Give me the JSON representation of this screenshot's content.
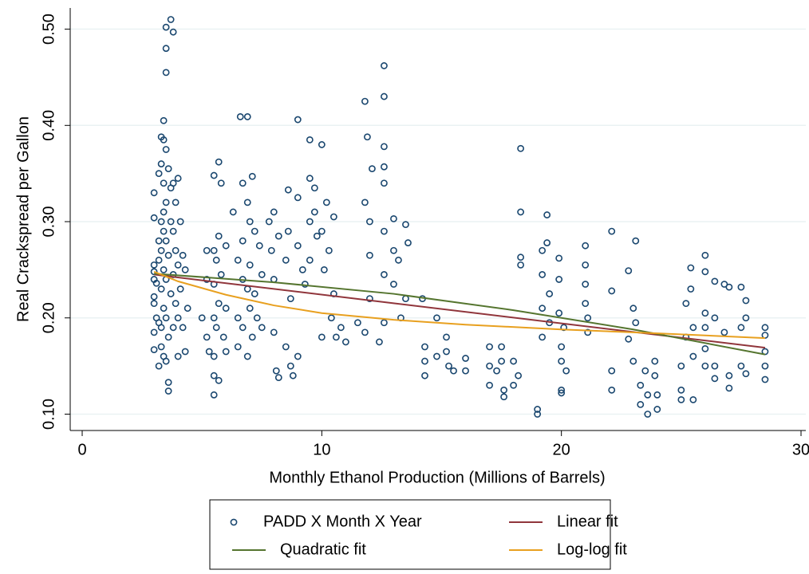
{
  "chart_data": {
    "type": "scatter",
    "y_label": "Real Crackspread per Gallon",
    "x_label": "Monthly Ethanol Production (Millions of Barrels)",
    "xlim": [
      -0.5,
      30.2
    ],
    "ylim": [
      0.083,
      0.522
    ],
    "xticks": [
      0,
      10,
      20,
      30
    ],
    "yticks": [
      {
        "value": 0.1,
        "label": "0.10"
      },
      {
        "value": 0.2,
        "label": "0.20"
      },
      {
        "value": 0.3,
        "label": "0.30"
      },
      {
        "value": 0.4,
        "label": "0.40"
      },
      {
        "value": 0.5,
        "label": "0.50"
      }
    ],
    "grid": true,
    "series": [
      {
        "name": "PADD X Month X Year",
        "type": "scatter",
        "color": "#1a476f",
        "x": [
          3,
          3,
          3,
          3,
          3,
          3,
          3,
          3,
          3,
          3.1,
          3.1,
          3.2,
          3.2,
          3.2,
          3.2,
          3.2,
          3.3,
          3.3,
          3.3,
          3.3,
          3.3,
          3.3,
          3.3,
          3.4,
          3.4,
          3.4,
          3.4,
          3.4,
          3.4,
          3.4,
          3.4,
          3.5,
          3.5,
          3.5,
          3.5,
          3.5,
          3.5,
          3.5,
          3.5,
          3.5,
          3.6,
          3.6,
          3.6,
          3.6,
          3.6,
          3.7,
          3.7,
          3.7,
          3.7,
          3.8,
          3.8,
          3.8,
          3.8,
          3.8,
          3.9,
          3.9,
          3.9,
          4,
          4,
          4,
          4,
          4.1,
          4.1,
          4.2,
          4.2,
          4.3,
          4.3,
          4.4,
          5,
          5.2,
          5.2,
          5.2,
          5.3,
          5.5,
          5.5,
          5.5,
          5.5,
          5.5,
          5.5,
          5.5,
          5.6,
          5.6,
          5.7,
          5.7,
          5.7,
          5.7,
          5.8,
          5.8,
          5.9,
          6,
          6,
          6,
          6.3,
          6.5,
          6.5,
          6.5,
          6.6,
          6.7,
          6.7,
          6.7,
          6.7,
          6.9,
          6.9,
          6.9,
          6.9,
          7,
          7,
          7,
          7.1,
          7.1,
          7.2,
          7.2,
          7.3,
          7.4,
          7.5,
          7.5,
          7.8,
          7.9,
          8,
          8,
          8,
          8.1,
          8.2,
          8.2,
          8.5,
          8.5,
          8.6,
          8.6,
          8.7,
          8.7,
          8.8,
          9,
          9,
          9,
          9,
          9.2,
          9.3,
          9.5,
          9.5,
          9.5,
          9.5,
          9.7,
          9.7,
          9.8,
          10,
          10,
          10,
          10.1,
          10.2,
          10.3,
          10.4,
          10.5,
          10.5,
          10.6,
          10.8,
          11,
          11.5,
          11.8,
          11.8,
          11.8,
          11.9,
          12,
          12,
          12,
          12.1,
          12.6,
          12.6,
          12.6,
          12.6,
          12.6,
          12.6,
          12.6,
          12.6,
          12.4,
          13,
          13,
          13,
          13.2,
          13.3,
          13.5,
          13.5,
          13.6,
          14.2,
          14.3,
          14.3,
          14.3,
          14.8,
          14.8,
          15.2,
          15.2,
          15.3,
          15.5,
          16,
          16,
          17,
          17,
          17,
          17.3,
          17.5,
          17.5,
          17.6,
          17.6,
          18,
          18,
          18.3,
          18.3,
          18.3,
          18.3,
          18.2,
          19,
          19,
          19.2,
          19.2,
          19.2,
          19.2,
          19.4,
          19.4,
          19.5,
          19.5,
          19.9,
          19.9,
          19.9,
          20,
          20,
          20,
          20,
          20.1,
          20.2,
          21,
          21,
          21,
          21,
          21.1,
          21.1,
          22.1,
          22.1,
          22.1,
          22.1,
          22.8,
          22.8,
          23,
          23,
          23.1,
          23.1,
          23.3,
          23.3,
          23.5,
          23.6,
          23.6,
          23.9,
          23.9,
          24,
          24,
          25,
          25,
          25,
          25.2,
          25.2,
          25.4,
          25.4,
          25.5,
          25.5,
          25.5,
          26,
          26,
          26,
          26,
          26,
          26,
          26.4,
          26.4,
          26.4,
          26.4,
          26.8,
          26.8,
          27,
          27,
          27,
          27.5,
          27.5,
          27.5,
          27.7,
          27.7,
          27.7,
          28.5,
          28.5,
          28.5,
          28.5,
          28.5
        ],
        "values": [
          0.33,
          0.304,
          0.255,
          0.248,
          0.24,
          0.222,
          0.215,
          0.185,
          0.167,
          0.236,
          0.2,
          0.35,
          0.28,
          0.26,
          0.195,
          0.15,
          0.388,
          0.36,
          0.3,
          0.27,
          0.23,
          0.19,
          0.17,
          0.405,
          0.385,
          0.34,
          0.31,
          0.29,
          0.25,
          0.21,
          0.16,
          0.502,
          0.48,
          0.455,
          0.375,
          0.32,
          0.28,
          0.24,
          0.2,
          0.155,
          0.355,
          0.265,
          0.18,
          0.133,
          0.124,
          0.51,
          0.335,
          0.3,
          0.225,
          0.497,
          0.34,
          0.29,
          0.245,
          0.19,
          0.32,
          0.27,
          0.215,
          0.345,
          0.255,
          0.2,
          0.16,
          0.3,
          0.23,
          0.265,
          0.19,
          0.25,
          0.165,
          0.21,
          0.2,
          0.27,
          0.24,
          0.18,
          0.165,
          0.348,
          0.27,
          0.235,
          0.2,
          0.16,
          0.14,
          0.12,
          0.26,
          0.19,
          0.362,
          0.285,
          0.215,
          0.135,
          0.34,
          0.245,
          0.18,
          0.275,
          0.21,
          0.165,
          0.31,
          0.26,
          0.2,
          0.17,
          0.409,
          0.34,
          0.28,
          0.24,
          0.19,
          0.409,
          0.32,
          0.23,
          0.16,
          0.3,
          0.255,
          0.21,
          0.347,
          0.18,
          0.29,
          0.225,
          0.2,
          0.275,
          0.245,
          0.19,
          0.3,
          0.27,
          0.31,
          0.24,
          0.185,
          0.145,
          0.285,
          0.138,
          0.26,
          0.17,
          0.333,
          0.29,
          0.22,
          0.15,
          0.14,
          0.406,
          0.325,
          0.275,
          0.16,
          0.25,
          0.235,
          0.385,
          0.345,
          0.3,
          0.26,
          0.335,
          0.31,
          0.285,
          0.38,
          0.29,
          0.18,
          0.25,
          0.32,
          0.27,
          0.2,
          0.305,
          0.225,
          0.18,
          0.19,
          0.175,
          0.195,
          0.425,
          0.32,
          0.185,
          0.388,
          0.3,
          0.265,
          0.22,
          0.355,
          0.462,
          0.43,
          0.378,
          0.357,
          0.34,
          0.29,
          0.245,
          0.195,
          0.175,
          0.303,
          0.27,
          0.235,
          0.26,
          0.2,
          0.297,
          0.22,
          0.278,
          0.22,
          0.17,
          0.155,
          0.14,
          0.2,
          0.16,
          0.18,
          0.165,
          0.15,
          0.145,
          0.158,
          0.145,
          0.17,
          0.15,
          0.13,
          0.145,
          0.17,
          0.155,
          0.125,
          0.118,
          0.155,
          0.13,
          0.376,
          0.31,
          0.263,
          0.255,
          0.14,
          0.1,
          0.105,
          0.27,
          0.245,
          0.21,
          0.18,
          0.307,
          0.278,
          0.225,
          0.195,
          0.262,
          0.24,
          0.205,
          0.17,
          0.155,
          0.125,
          0.122,
          0.19,
          0.145,
          0.275,
          0.255,
          0.235,
          0.215,
          0.2,
          0.185,
          0.29,
          0.228,
          0.145,
          0.125,
          0.249,
          0.178,
          0.21,
          0.155,
          0.28,
          0.195,
          0.13,
          0.11,
          0.145,
          0.12,
          0.1,
          0.155,
          0.14,
          0.12,
          0.105,
          0.15,
          0.125,
          0.115,
          0.215,
          0.18,
          0.252,
          0.23,
          0.19,
          0.16,
          0.115,
          0.265,
          0.248,
          0.205,
          0.19,
          0.168,
          0.15,
          0.238,
          0.2,
          0.15,
          0.137,
          0.235,
          0.185,
          0.232,
          0.14,
          0.127,
          0.232,
          0.19,
          0.15,
          0.218,
          0.2,
          0.142,
          0.19,
          0.182,
          0.165,
          0.15,
          0.136
        ]
      },
      {
        "name": "Linear fit",
        "type": "line",
        "color": "#90353b",
        "x": [
          3,
          28.5
        ],
        "values": [
          0.245,
          0.169
        ]
      },
      {
        "name": "Quadratic fit",
        "type": "line",
        "color": "#55752f",
        "x": [
          3,
          8,
          13,
          18,
          23,
          28.5
        ],
        "values": [
          0.246,
          0.237,
          0.225,
          0.208,
          0.188,
          0.162
        ]
      },
      {
        "name": "Log-log fit",
        "type": "line",
        "color": "#e8a01f",
        "x": [
          3,
          4,
          6,
          8,
          10,
          13,
          16,
          20,
          24,
          28.5
        ],
        "values": [
          0.248,
          0.238,
          0.224,
          0.213,
          0.205,
          0.198,
          0.193,
          0.188,
          0.184,
          0.179
        ]
      }
    ]
  }
}
